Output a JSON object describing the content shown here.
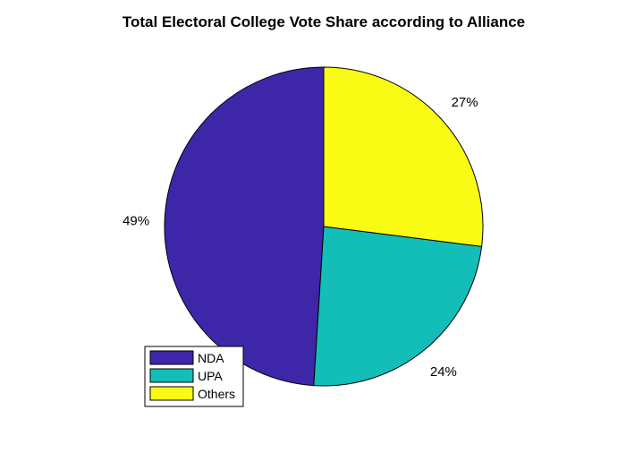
{
  "chart_data": {
    "type": "pie",
    "title": "Total Electoral College Vote Share according to Alliance",
    "slices": [
      {
        "name": "NDA",
        "value": 49,
        "label": "49%",
        "color": "#3e26a8"
      },
      {
        "name": "UPA",
        "value": 24,
        "label": "24%",
        "color": "#13beb8"
      },
      {
        "name": "Others",
        "value": 27,
        "label": "27%",
        "color": "#f9fb15"
      }
    ],
    "direction": "counterclockwise",
    "start": "top",
    "legend_position": "bottom-left"
  }
}
